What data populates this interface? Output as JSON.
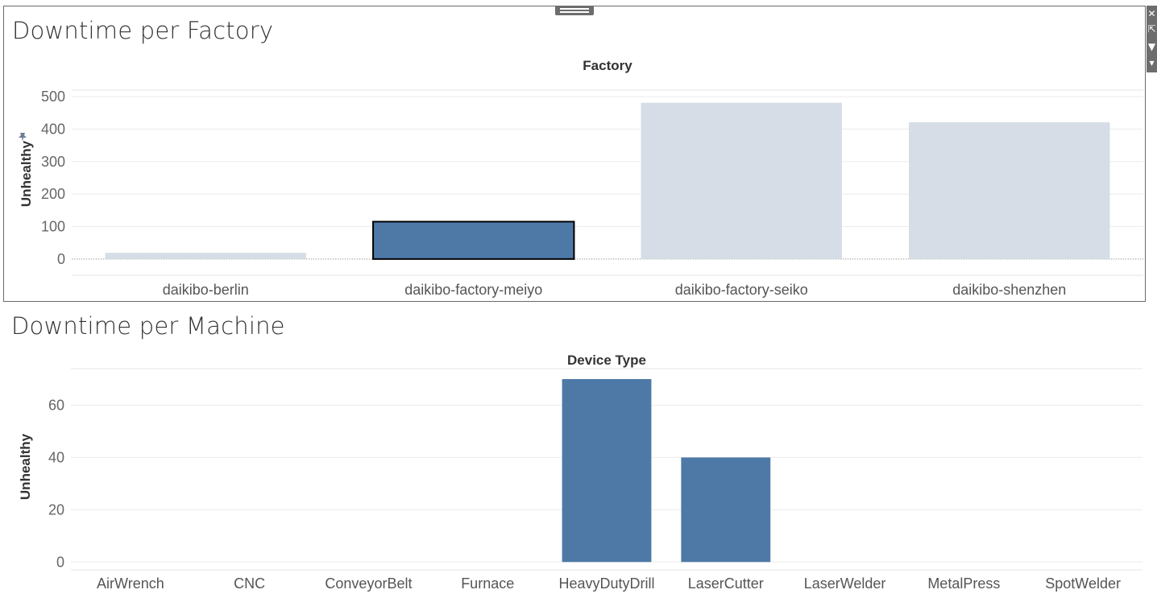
{
  "chart_data": [
    {
      "type": "bar",
      "title": "Downtime per Factory",
      "xlabel": "Factory",
      "ylabel": "Unhealthy",
      "categories": [
        "daikibo-berlin",
        "daikibo-factory-meiyo",
        "daikibo-factory-seiko",
        "daikibo-shenzhen"
      ],
      "values": [
        19,
        115,
        481,
        421
      ],
      "ylim": [
        -50,
        520
      ],
      "yticks": [
        0,
        100,
        200,
        300,
        400,
        500
      ],
      "grid": true,
      "selected_index": 1,
      "colors": {
        "selected": "#4e79a7",
        "unselected": "#d6dde6",
        "selected_outline": "#000000"
      }
    },
    {
      "type": "bar",
      "title": "Downtime per Machine",
      "xlabel": "Device Type",
      "ylabel": "Unhealthy",
      "categories": [
        "AirWrench",
        "CNC",
        "ConveyorBelt",
        "Furnace",
        "HeavyDutyDrill",
        "LaserCutter",
        "LaserWelder",
        "MetalPress",
        "SpotWelder"
      ],
      "values": [
        0,
        0,
        0,
        0,
        70,
        40,
        0,
        0,
        0
      ],
      "ylim": [
        -3,
        74
      ],
      "yticks": [
        0,
        20,
        40,
        60
      ],
      "grid": true,
      "colors": {
        "bar": "#4e79a7"
      }
    }
  ],
  "toolbar": {
    "close_glyph": "✕",
    "popout_glyph": "⇱",
    "filter_glyph": "▼",
    "more_glyph": "▾"
  },
  "icons": {
    "pin": "pin-icon"
  }
}
